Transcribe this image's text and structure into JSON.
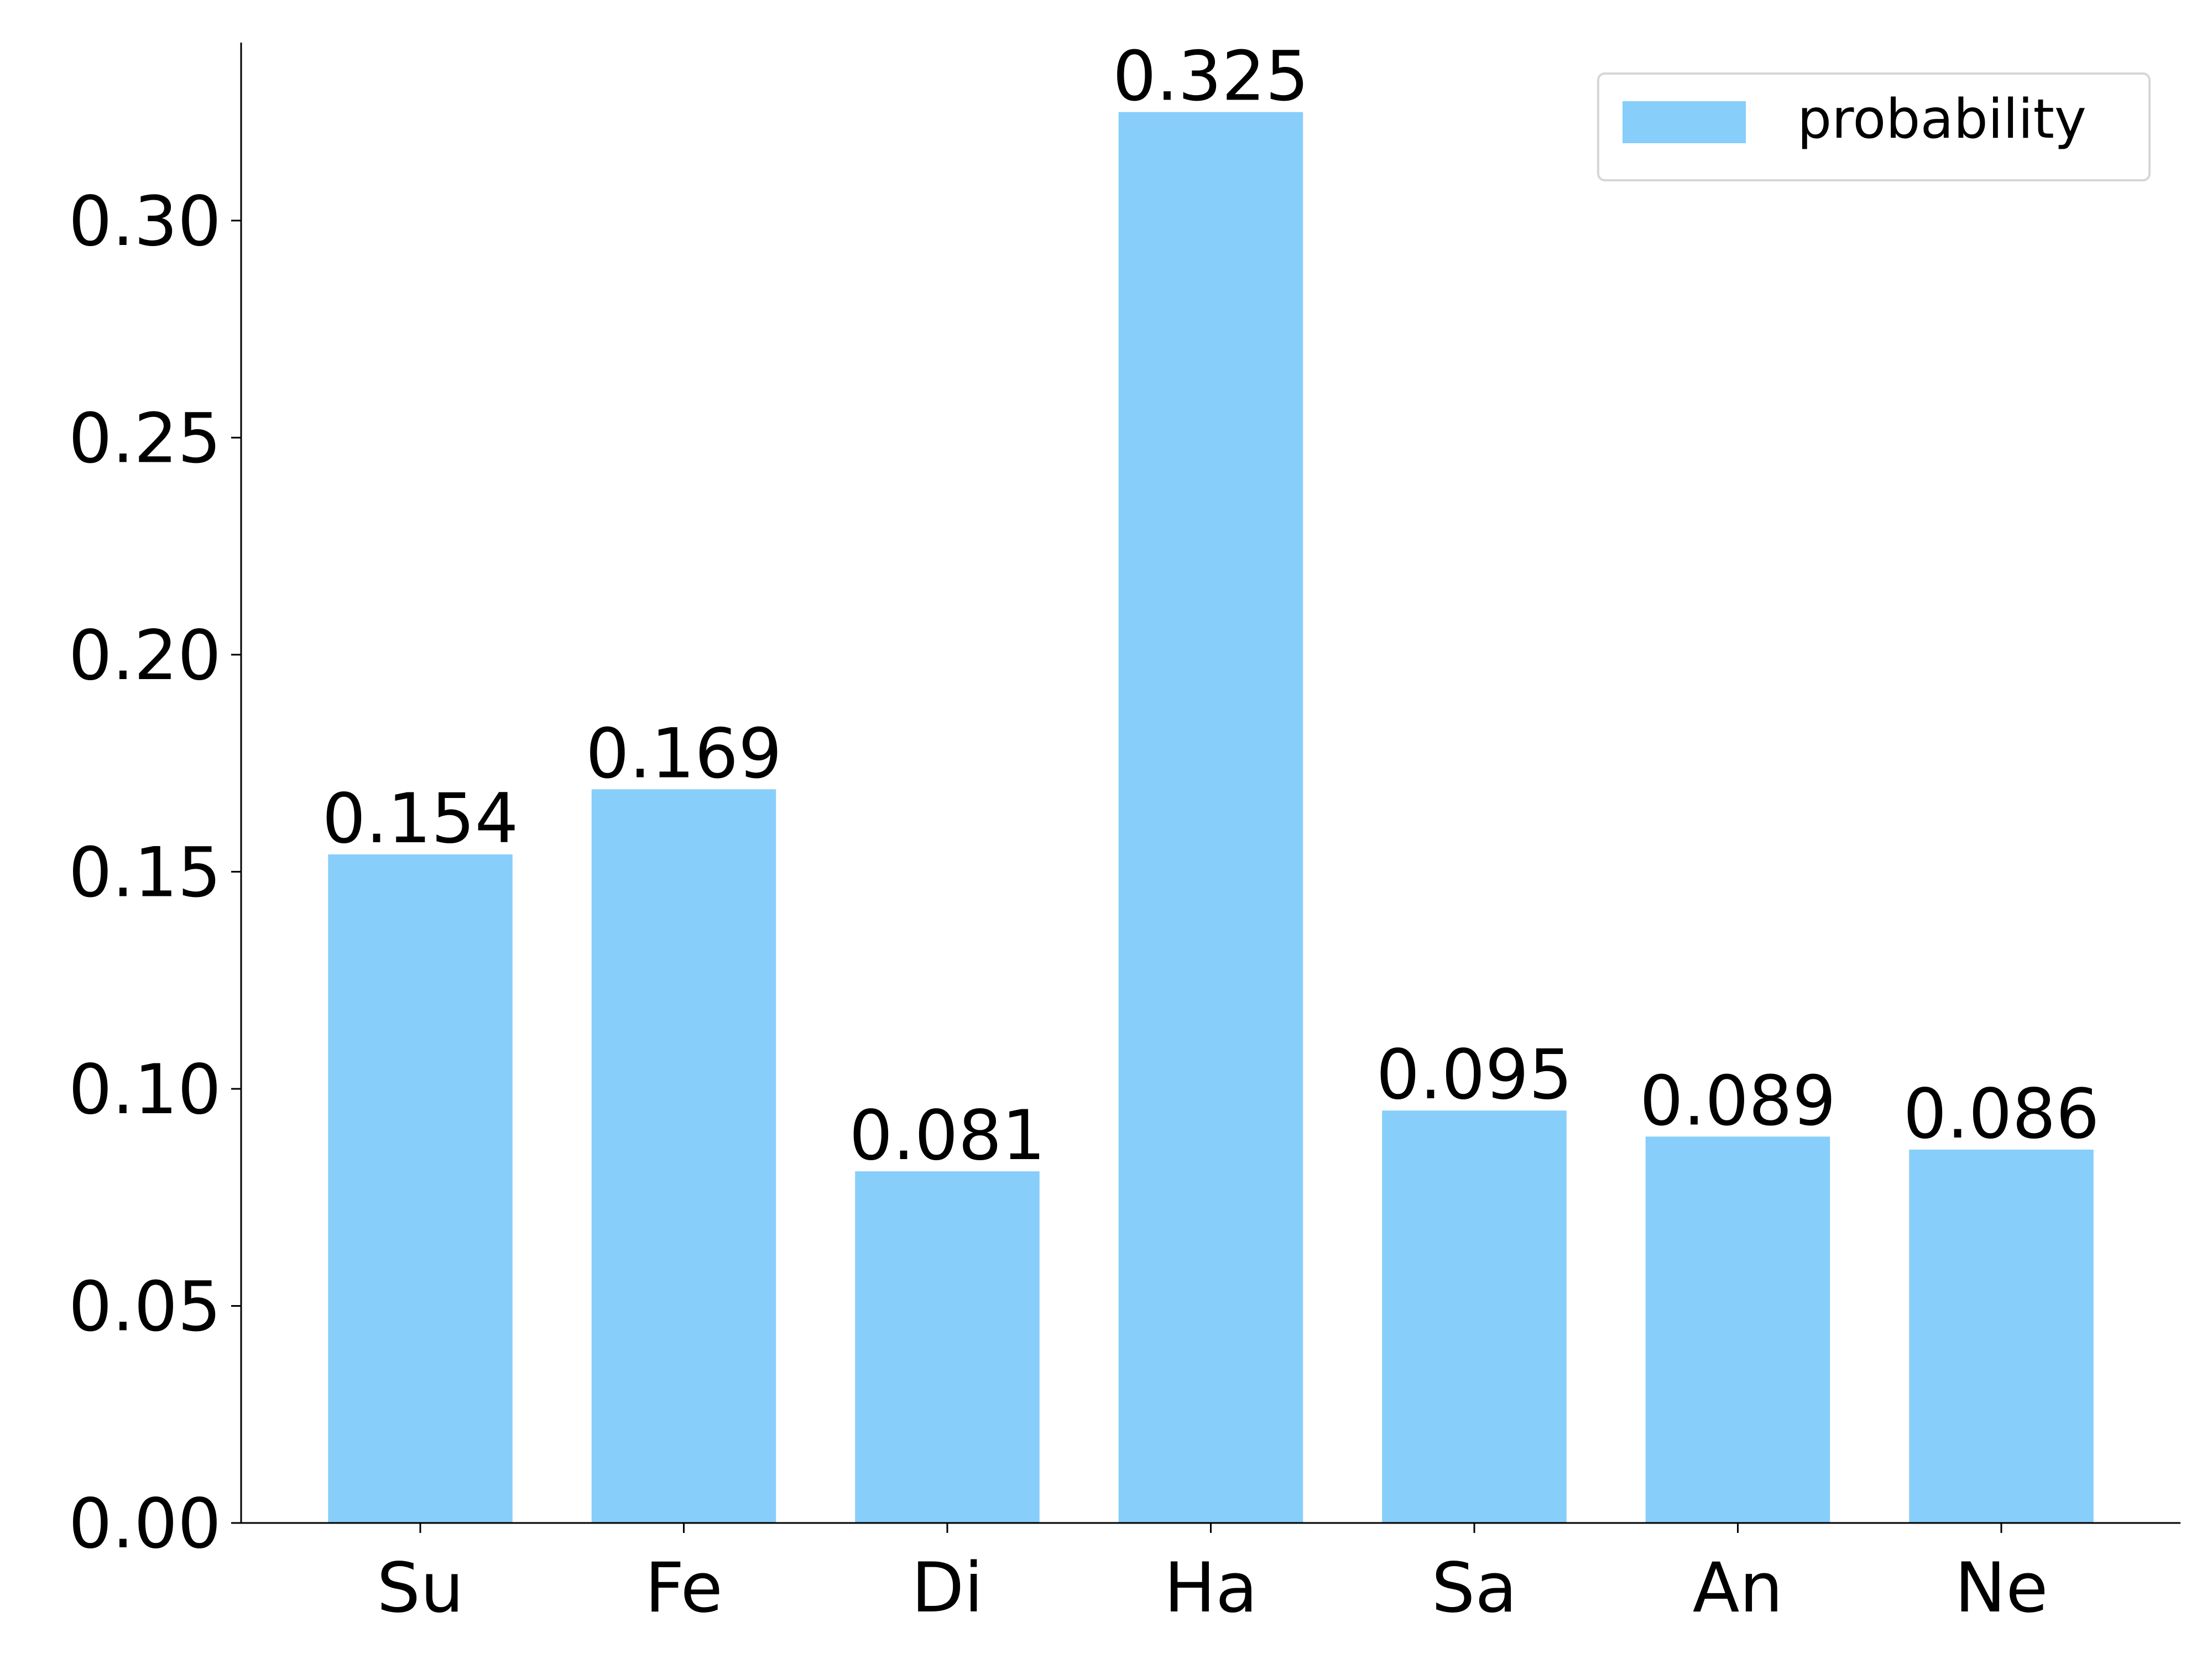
{
  "chart_data": {
    "type": "bar",
    "categories": [
      "Su",
      "Fe",
      "Di",
      "Ha",
      "Sa",
      "An",
      "Ne"
    ],
    "series": [
      {
        "name": "probability",
        "color": "#87cefa",
        "values": [
          0.154,
          0.169,
          0.081,
          0.325,
          0.095,
          0.089,
          0.086
        ]
      }
    ],
    "ylim": [
      0,
      0.341
    ],
    "yticks": [
      {
        "value": 0,
        "label": "0.00"
      },
      0.05,
      {
        "value": 0.1,
        "label": "0.10"
      },
      0.15,
      {
        "value": 0.2,
        "label": "0.20"
      },
      0.25,
      {
        "value": 0.3,
        "label": "0.30"
      }
    ],
    "grid": false,
    "legend": "upper right"
  }
}
